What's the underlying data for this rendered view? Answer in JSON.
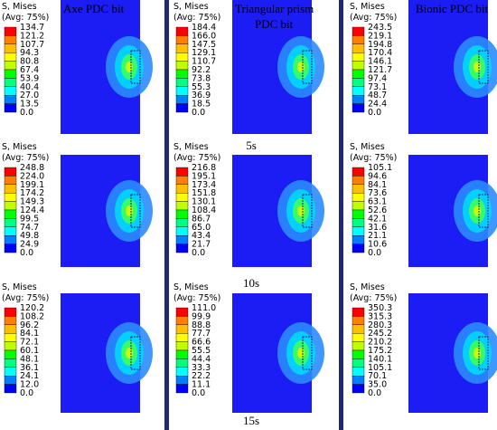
{
  "column_titles": [
    {
      "lines": [
        "Axe PDC bit"
      ]
    },
    {
      "lines": [
        "Triangular prism",
        "PDC bit"
      ]
    },
    {
      "lines": [
        "Bionic PDC bit"
      ]
    }
  ],
  "time_labels": [
    "5s",
    "10s",
    "15s"
  ],
  "panels": [
    [
      {
        "header": [
          "S, Mises",
          "(Avg: 75%)"
        ],
        "legend": [
          "134.7",
          "121.2",
          "107.7",
          "94.3",
          "80.8",
          "67.4",
          "53.9",
          "40.4",
          "27.0",
          "13.5",
          "0.0"
        ]
      },
      {
        "header": [
          "S, Mises",
          "(Avg: 75%)"
        ],
        "legend": [
          "184.4",
          "166.0",
          "147.5",
          "129.1",
          "110.7",
          "92.2",
          "73.8",
          "55.3",
          "36.9",
          "18.5",
          "0.0"
        ]
      },
      {
        "header": [
          "S, Mises",
          "(Avg: 75%)"
        ],
        "legend": [
          "243.5",
          "219.1",
          "194.8",
          "170.4",
          "146.1",
          "121.7",
          "97.4",
          "73.1",
          "48.7",
          "24.4",
          "0.0"
        ]
      }
    ],
    [
      {
        "header": [
          "S, Mises",
          "(Avg: 75%)"
        ],
        "legend": [
          "248.8",
          "224.0",
          "199.1",
          "174.2",
          "149.3",
          "124.4",
          "99.5",
          "74.7",
          "49.8",
          "24.9",
          "0.0"
        ]
      },
      {
        "header": [
          "S, Mises",
          "(Avg: 75%)"
        ],
        "legend": [
          "216.8",
          "195.1",
          "173.4",
          "151.8",
          "130.1",
          "108.4",
          "86.7",
          "65.0",
          "43.4",
          "21.7",
          "0.0"
        ]
      },
      {
        "header": [
          "S, Mises",
          "(Avg: 75%)"
        ],
        "legend": [
          "105.1",
          "94.6",
          "84.1",
          "73.6",
          "63.1",
          "52.6",
          "42.1",
          "31.6",
          "21.1",
          "10.6",
          "0.0"
        ]
      }
    ],
    [
      {
        "header": [
          "S, Mises",
          "(Avg: 75%)"
        ],
        "legend": [
          "120.2",
          "108.2",
          "96.2",
          "84.1",
          "72.1",
          "60.1",
          "48.1",
          "36.1",
          "24.1",
          "12.0",
          "0.0"
        ]
      },
      {
        "header": [
          "S, Mises",
          "(Avg: 75%)"
        ],
        "legend": [
          "111.0",
          "99.9",
          "88.8",
          "77.7",
          "66.6",
          "55.5",
          "44.4",
          "33.3",
          "22.2",
          "11.1",
          "0.0"
        ]
      },
      {
        "header": [
          "S, Mises",
          "(Avg: 75%)"
        ],
        "legend": [
          "350.3",
          "315.3",
          "280.3",
          "245.2",
          "210.2",
          "175.2",
          "140.1",
          "105.1",
          "70.1",
          "35.0",
          "0.0"
        ]
      }
    ]
  ]
}
